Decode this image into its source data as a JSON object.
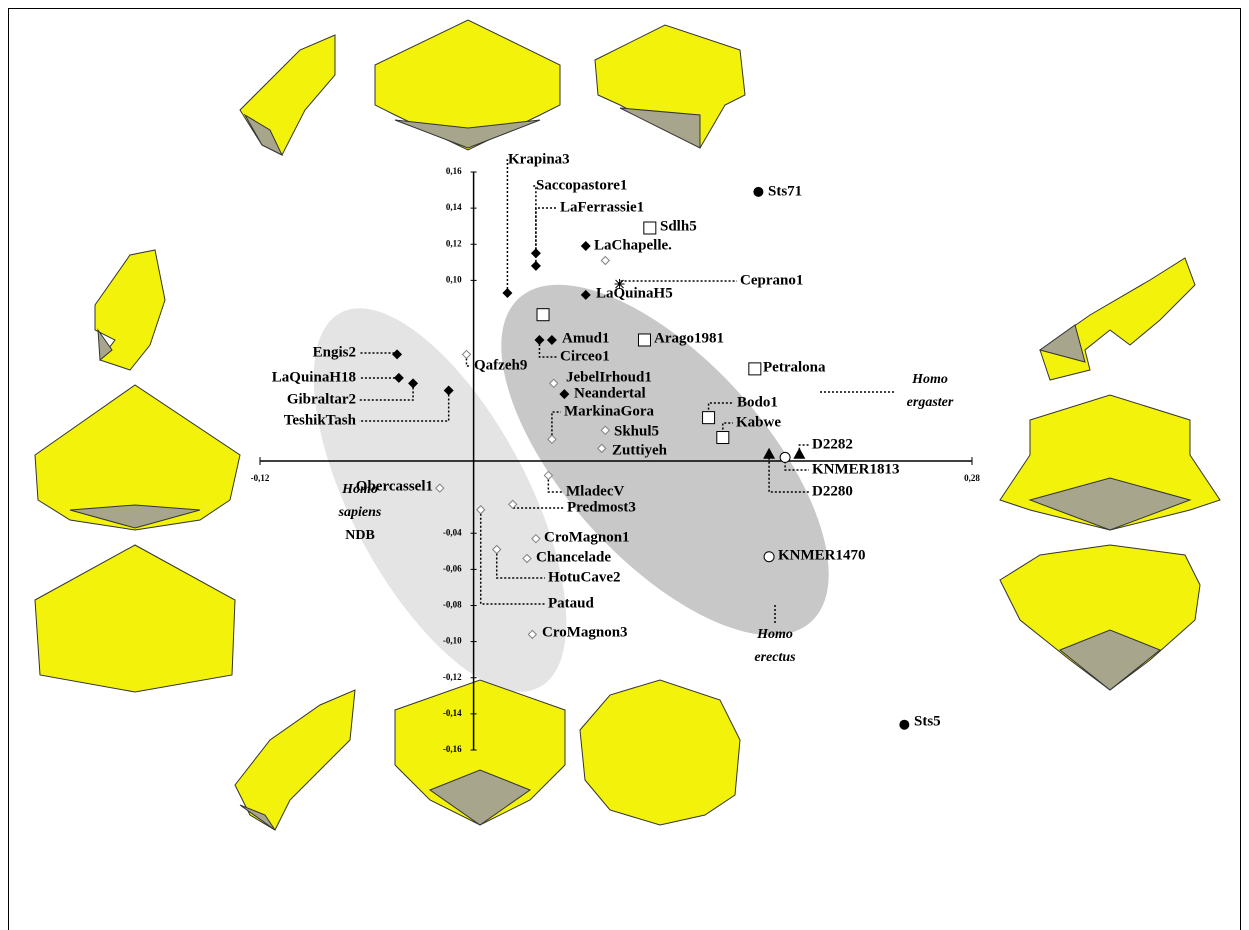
{
  "chart_data": {
    "type": "scatter",
    "xlim": [
      -0.12,
      0.28
    ],
    "ylim": [
      -0.16,
      0.16
    ],
    "xticks": [
      {
        "value": -0.12,
        "label": "-0,12"
      },
      {
        "value": 0.28,
        "label": "0,28"
      }
    ],
    "yticks": [
      {
        "value": 0.16,
        "label": "0,16"
      },
      {
        "value": 0.14,
        "label": "0,14"
      },
      {
        "value": 0.12,
        "label": "0,12"
      },
      {
        "value": 0.1,
        "label": "0,10"
      },
      {
        "value": -0.04,
        "label": "-0,04"
      },
      {
        "value": -0.06,
        "label": "-0,06"
      },
      {
        "value": -0.08,
        "label": "-0,08"
      },
      {
        "value": -0.1,
        "label": "-0,10"
      },
      {
        "value": -0.12,
        "label": "-0,12"
      },
      {
        "value": -0.14,
        "label": "-0,14"
      },
      {
        "value": -0.16,
        "label": "-0,16"
      }
    ],
    "series": [
      {
        "marker": "diamond-filled",
        "color": "#000000",
        "labels": [
          "Krapina3",
          "Saccopastore1",
          "LaFerrassie1",
          "LaChapelle.",
          "LaQuinaH5",
          "Amud1",
          "Circeo1",
          "Neandertal",
          "Engis2",
          "LaQuinaH18",
          "Gibraltar2",
          "TeshikTash"
        ],
        "x": [
          0.019,
          0.035,
          0.035,
          0.063,
          0.063,
          0.044,
          0.037,
          0.051,
          -0.043,
          -0.042,
          -0.034,
          -0.014
        ],
        "values": [
          0.093,
          0.115,
          0.108,
          0.119,
          0.092,
          0.067,
          0.067,
          0.037,
          0.059,
          0.046,
          0.043,
          0.039
        ]
      },
      {
        "marker": "diamond-open",
        "color": "#808080",
        "labels": [
          "Qafzeh9",
          "JebelIrhoud1",
          "MarkinaGora",
          "Skhul5",
          "Zuttiyeh",
          "MladecV",
          "Predmost3",
          "CroMagnon1",
          "Chancelade",
          "HotuCave2",
          "Pataud",
          "CroMagnon3",
          "Obercassel1",
          null
        ],
        "x": [
          -0.004,
          0.045,
          0.044,
          0.074,
          0.072,
          0.042,
          0.022,
          0.035,
          0.03,
          0.013,
          0.004,
          0.033,
          -0.019,
          0.074
        ],
        "values": [
          0.059,
          0.043,
          0.012,
          0.017,
          0.007,
          -0.008,
          -0.024,
          -0.043,
          -0.054,
          -0.049,
          -0.027,
          -0.096,
          -0.015,
          0.111
        ]
      },
      {
        "marker": "square",
        "color": "#000000",
        "labels": [
          "Sdlh5",
          null,
          "Arago1981",
          "Petralona",
          "Bodo1",
          "Kabwe"
        ],
        "x": [
          0.099,
          0.039,
          0.096,
          0.158,
          0.132,
          0.14
        ],
        "values": [
          0.129,
          0.081,
          0.067,
          0.051,
          0.024,
          0.013
        ]
      },
      {
        "marker": "asterisk",
        "color": "#000000",
        "labels": [
          "Ceprano1"
        ],
        "x": [
          0.082
        ],
        "values": [
          0.098
        ]
      },
      {
        "marker": "triangle",
        "color": "#000000",
        "labels": [
          "D2282",
          "D2280"
        ],
        "x": [
          0.183,
          0.166
        ],
        "values": [
          0.004,
          0.004
        ]
      },
      {
        "marker": "circle-open",
        "color": "#000000",
        "labels": [
          "KNMER1813",
          "KNMER1470"
        ],
        "x": [
          0.175,
          0.166
        ],
        "values": [
          0.002,
          -0.053
        ]
      },
      {
        "marker": "circle-filled",
        "color": "#000000",
        "labels": [
          "Sts71",
          "Sts5"
        ],
        "x": [
          0.16,
          0.242
        ],
        "values": [
          0.149,
          -0.146
        ]
      }
    ],
    "annotations": [
      {
        "lines": [
          "Homo",
          "ergaster"
        ]
      },
      {
        "lines": [
          "Homo",
          "erectus"
        ]
      },
      {
        "lines": [
          "Homo",
          "sapiens",
          "NDB"
        ]
      }
    ]
  }
}
